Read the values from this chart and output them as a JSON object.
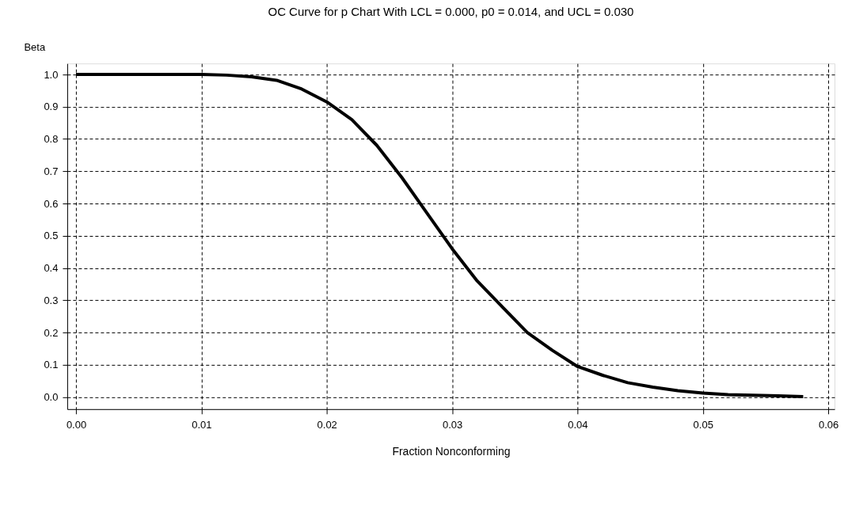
{
  "chart_data": {
    "type": "line",
    "title": "OC Curve for p Chart With LCL = 0.000, p0 = 0.014, and UCL = 0.030",
    "xlabel": "Fraction Nonconforming",
    "ylabel": "Beta",
    "series": [
      {
        "color": "#000000",
        "x": [
          0,
          0.005,
          0.01,
          0.012,
          0.014,
          0.016,
          0.018,
          0.02,
          0.022,
          0.024,
          0.026,
          0.028,
          0.03,
          0.032,
          0.034,
          0.036,
          0.038,
          0.04,
          0.042,
          0.044,
          0.046,
          0.048,
          0.05,
          0.052,
          0.054,
          0.056,
          0.058
        ],
        "values": [
          1.0,
          1.0,
          1.0,
          0.998,
          0.993,
          0.982,
          0.955,
          0.915,
          0.86,
          0.78,
          0.68,
          0.57,
          0.46,
          0.36,
          0.28,
          0.2,
          0.145,
          0.095,
          0.068,
          0.045,
          0.031,
          0.02,
          0.013,
          0.008,
          0.006,
          0.004,
          0.002
        ]
      }
    ],
    "xlim": [
      -0.0007,
      0.0605
    ],
    "ylim": [
      -0.037,
      1.034
    ],
    "xticks": [
      {
        "value": 0,
        "label": "0.00"
      },
      {
        "value": 0.01,
        "label": "0.01"
      },
      {
        "value": 0.02,
        "label": "0.02"
      },
      {
        "value": 0.03,
        "label": "0.03"
      },
      {
        "value": 0.04,
        "label": "0.04"
      },
      {
        "value": 0.05,
        "label": "0.05"
      },
      {
        "value": 0.06,
        "label": "0.06"
      }
    ],
    "yticks": [
      {
        "value": 0,
        "label": "0.0"
      },
      {
        "value": 0.1,
        "label": "0.1"
      },
      {
        "value": 0.2,
        "label": "0.2"
      },
      {
        "value": 0.3,
        "label": "0.3"
      },
      {
        "value": 0.4,
        "label": "0.4"
      },
      {
        "value": 0.5,
        "label": "0.5"
      },
      {
        "value": 0.6,
        "label": "0.6"
      },
      {
        "value": 0.7,
        "label": "0.7"
      },
      {
        "value": 0.8,
        "label": "0.8"
      },
      {
        "value": 0.9,
        "label": "0.9"
      },
      {
        "value": 1.0,
        "label": "1.0"
      }
    ],
    "grid": true,
    "line_style": "solid",
    "marker": "none"
  }
}
